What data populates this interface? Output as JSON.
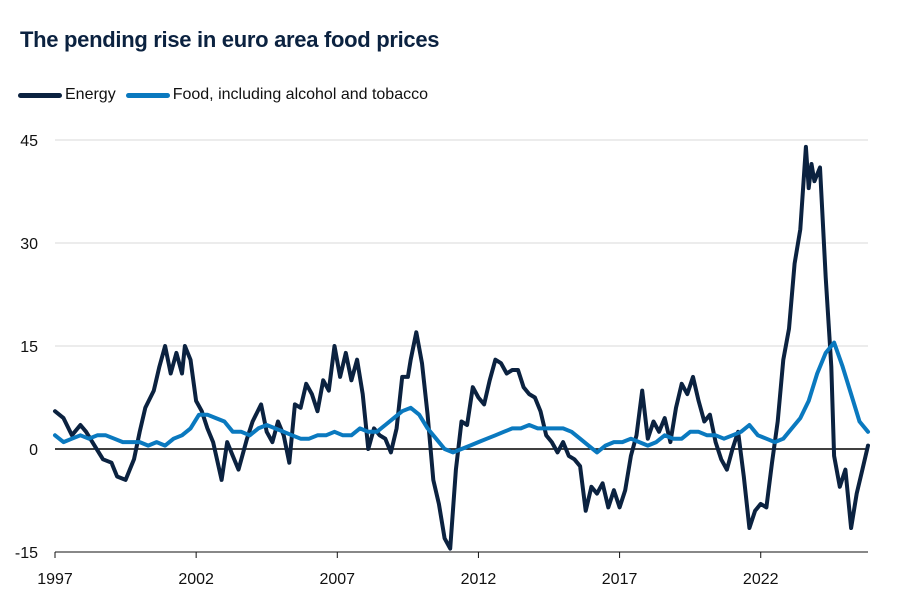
{
  "chart_data": {
    "type": "line",
    "title": "The pending rise in euro area food prices",
    "xlabel": "",
    "ylabel": "",
    "xlim": [
      1997,
      2025.8
    ],
    "ylim": [
      -15,
      45
    ],
    "yticks": [
      -15,
      0,
      15,
      30,
      45
    ],
    "xticks": [
      1997,
      2002,
      2007,
      2012,
      2017,
      2022
    ],
    "grid": "horizontal",
    "legend_position": "top-left",
    "series": [
      {
        "name": "Energy",
        "color": "#0b2240",
        "points": [
          [
            1997.0,
            5.5
          ],
          [
            1997.3,
            4.5
          ],
          [
            1997.6,
            2.0
          ],
          [
            1997.9,
            3.5
          ],
          [
            1998.1,
            2.5
          ],
          [
            1998.4,
            0.5
          ],
          [
            1998.7,
            -1.5
          ],
          [
            1999.0,
            -2.0
          ],
          [
            1999.2,
            -4.0
          ],
          [
            1999.5,
            -4.5
          ],
          [
            1999.8,
            -1.5
          ],
          [
            2000.0,
            2.5
          ],
          [
            2000.2,
            6.0
          ],
          [
            2000.5,
            8.5
          ],
          [
            2000.7,
            12.0
          ],
          [
            2000.9,
            15.0
          ],
          [
            2001.1,
            11.0
          ],
          [
            2001.3,
            14.0
          ],
          [
            2001.5,
            11.0
          ],
          [
            2001.6,
            15.0
          ],
          [
            2001.8,
            13.0
          ],
          [
            2002.0,
            7.0
          ],
          [
            2002.2,
            5.5
          ],
          [
            2002.4,
            3.0
          ],
          [
            2002.6,
            1.0
          ],
          [
            2002.9,
            -4.5
          ],
          [
            2003.1,
            1.0
          ],
          [
            2003.3,
            -1.0
          ],
          [
            2003.5,
            -3.0
          ],
          [
            2003.8,
            1.5
          ],
          [
            2004.0,
            4.0
          ],
          [
            2004.3,
            6.5
          ],
          [
            2004.5,
            2.5
          ],
          [
            2004.7,
            1.0
          ],
          [
            2004.9,
            4.0
          ],
          [
            2005.1,
            2.0
          ],
          [
            2005.3,
            -2.0
          ],
          [
            2005.5,
            6.5
          ],
          [
            2005.7,
            6.0
          ],
          [
            2005.9,
            9.5
          ],
          [
            2006.1,
            8.0
          ],
          [
            2006.3,
            5.5
          ],
          [
            2006.5,
            10.0
          ],
          [
            2006.7,
            8.5
          ],
          [
            2006.9,
            15.0
          ],
          [
            2007.1,
            10.5
          ],
          [
            2007.3,
            14.0
          ],
          [
            2007.5,
            10.0
          ],
          [
            2007.7,
            13.0
          ],
          [
            2007.9,
            8.0
          ],
          [
            2008.1,
            0.0
          ],
          [
            2008.3,
            3.0
          ],
          [
            2008.5,
            2.0
          ],
          [
            2008.7,
            1.5
          ],
          [
            2008.9,
            -0.5
          ],
          [
            2009.1,
            3.0
          ],
          [
            2009.3,
            10.5
          ],
          [
            2009.5,
            10.5
          ],
          [
            2009.6,
            13.0
          ],
          [
            2009.8,
            17.0
          ],
          [
            2010.0,
            12.5
          ],
          [
            2010.2,
            5.0
          ],
          [
            2010.4,
            -4.5
          ],
          [
            2010.6,
            -8.0
          ],
          [
            2010.8,
            -13.0
          ],
          [
            2011.0,
            -14.5
          ],
          [
            2011.2,
            -3.0
          ],
          [
            2011.4,
            4.0
          ],
          [
            2011.6,
            3.5
          ],
          [
            2011.8,
            9.0
          ],
          [
            2012.0,
            7.5
          ],
          [
            2012.2,
            6.5
          ],
          [
            2012.4,
            10.0
          ],
          [
            2012.6,
            13.0
          ],
          [
            2012.8,
            12.5
          ],
          [
            2013.0,
            11.0
          ],
          [
            2013.2,
            11.5
          ],
          [
            2013.4,
            11.5
          ],
          [
            2013.6,
            9.0
          ],
          [
            2013.8,
            8.0
          ],
          [
            2014.0,
            7.5
          ],
          [
            2014.2,
            5.5
          ],
          [
            2014.4,
            2.0
          ],
          [
            2014.6,
            1.0
          ],
          [
            2014.8,
            -0.5
          ],
          [
            2015.0,
            1.0
          ],
          [
            2015.2,
            -1.0
          ],
          [
            2015.4,
            -1.5
          ],
          [
            2015.6,
            -2.5
          ],
          [
            2015.8,
            -9.0
          ],
          [
            2016.0,
            -5.5
          ],
          [
            2016.2,
            -6.5
          ],
          [
            2016.4,
            -5.0
          ],
          [
            2016.6,
            -8.5
          ],
          [
            2016.8,
            -6.0
          ],
          [
            2017.0,
            -8.5
          ],
          [
            2017.2,
            -6.0
          ],
          [
            2017.4,
            -1.0
          ],
          [
            2017.6,
            2.0
          ],
          [
            2017.8,
            8.5
          ],
          [
            2018.0,
            1.5
          ],
          [
            2018.2,
            4.0
          ],
          [
            2018.4,
            2.5
          ],
          [
            2018.6,
            4.5
          ],
          [
            2018.8,
            1.0
          ],
          [
            2019.0,
            6.0
          ],
          [
            2019.2,
            9.5
          ],
          [
            2019.4,
            8.0
          ],
          [
            2019.6,
            10.5
          ],
          [
            2019.8,
            7.0
          ],
          [
            2020.0,
            4.0
          ],
          [
            2020.2,
            5.0
          ],
          [
            2020.4,
            1.0
          ],
          [
            2020.6,
            -1.5
          ],
          [
            2020.8,
            -3.0
          ],
          [
            2021.0,
            0.0
          ],
          [
            2021.2,
            2.5
          ],
          [
            2021.4,
            -4.0
          ],
          [
            2021.6,
            -11.5
          ],
          [
            2021.8,
            -9.0
          ],
          [
            2022.0,
            -8.0
          ],
          [
            2022.2,
            -8.5
          ],
          [
            2022.4,
            -2.0
          ],
          [
            2022.6,
            4.0
          ],
          [
            2022.8,
            13.0
          ],
          [
            2023.0,
            17.5
          ],
          [
            2023.2,
            27.0
          ],
          [
            2023.4,
            32.0
          ],
          [
            2023.6,
            44.0
          ],
          [
            2023.7,
            38.0
          ],
          [
            2023.8,
            41.5
          ],
          [
            2023.9,
            39.0
          ],
          [
            2024.1,
            41.0
          ],
          [
            2024.3,
            25.0
          ],
          [
            2024.5,
            12.0
          ],
          [
            2024.6,
            -1.0
          ],
          [
            2024.8,
            -5.5
          ],
          [
            2025.0,
            -3.0
          ],
          [
            2025.2,
            -11.5
          ],
          [
            2025.4,
            -6.5
          ],
          [
            2025.6,
            -3.0
          ],
          [
            2025.8,
            0.5
          ]
        ]
      },
      {
        "name": "Food, including alcohol and tobacco",
        "color": "#0a79bf",
        "points": [
          [
            1997.0,
            2.0
          ],
          [
            1997.3,
            1.0
          ],
          [
            1997.6,
            1.5
          ],
          [
            1997.9,
            2.0
          ],
          [
            1998.2,
            1.5
          ],
          [
            1998.5,
            2.0
          ],
          [
            1998.8,
            2.0
          ],
          [
            1999.1,
            1.5
          ],
          [
            1999.4,
            1.0
          ],
          [
            1999.7,
            1.0
          ],
          [
            2000.0,
            1.0
          ],
          [
            2000.3,
            0.5
          ],
          [
            2000.6,
            1.0
          ],
          [
            2000.9,
            0.5
          ],
          [
            2001.2,
            1.5
          ],
          [
            2001.5,
            2.0
          ],
          [
            2001.8,
            3.0
          ],
          [
            2002.1,
            5.0
          ],
          [
            2002.4,
            5.0
          ],
          [
            2002.7,
            4.5
          ],
          [
            2003.0,
            4.0
          ],
          [
            2003.3,
            2.5
          ],
          [
            2003.6,
            2.5
          ],
          [
            2003.9,
            2.0
          ],
          [
            2004.2,
            3.0
          ],
          [
            2004.5,
            3.5
          ],
          [
            2004.8,
            3.0
          ],
          [
            2005.1,
            2.5
          ],
          [
            2005.4,
            2.0
          ],
          [
            2005.7,
            1.5
          ],
          [
            2006.0,
            1.5
          ],
          [
            2006.3,
            2.0
          ],
          [
            2006.6,
            2.0
          ],
          [
            2006.9,
            2.5
          ],
          [
            2007.2,
            2.0
          ],
          [
            2007.5,
            2.0
          ],
          [
            2007.8,
            3.0
          ],
          [
            2008.1,
            2.5
          ],
          [
            2008.4,
            2.5
          ],
          [
            2008.7,
            3.5
          ],
          [
            2009.0,
            4.5
          ],
          [
            2009.3,
            5.5
          ],
          [
            2009.6,
            6.0
          ],
          [
            2009.9,
            5.0
          ],
          [
            2010.2,
            3.0
          ],
          [
            2010.5,
            1.5
          ],
          [
            2010.8,
            0.0
          ],
          [
            2011.1,
            -0.5
          ],
          [
            2011.4,
            0.0
          ],
          [
            2011.7,
            0.5
          ],
          [
            2012.0,
            1.0
          ],
          [
            2012.3,
            1.5
          ],
          [
            2012.6,
            2.0
          ],
          [
            2012.9,
            2.5
          ],
          [
            2013.2,
            3.0
          ],
          [
            2013.5,
            3.0
          ],
          [
            2013.8,
            3.5
          ],
          [
            2014.1,
            3.0
          ],
          [
            2014.4,
            3.0
          ],
          [
            2014.7,
            3.0
          ],
          [
            2015.0,
            3.0
          ],
          [
            2015.3,
            2.5
          ],
          [
            2015.6,
            1.5
          ],
          [
            2015.9,
            0.5
          ],
          [
            2016.2,
            -0.5
          ],
          [
            2016.5,
            0.5
          ],
          [
            2016.8,
            1.0
          ],
          [
            2017.1,
            1.0
          ],
          [
            2017.4,
            1.5
          ],
          [
            2017.7,
            1.0
          ],
          [
            2018.0,
            0.5
          ],
          [
            2018.3,
            1.0
          ],
          [
            2018.6,
            2.0
          ],
          [
            2018.9,
            1.5
          ],
          [
            2019.2,
            1.5
          ],
          [
            2019.5,
            2.5
          ],
          [
            2019.8,
            2.5
          ],
          [
            2020.1,
            2.0
          ],
          [
            2020.4,
            2.0
          ],
          [
            2020.7,
            1.5
          ],
          [
            2021.0,
            2.0
          ],
          [
            2021.3,
            2.5
          ],
          [
            2021.6,
            3.5
          ],
          [
            2021.9,
            2.0
          ],
          [
            2022.2,
            1.5
          ],
          [
            2022.5,
            1.0
          ],
          [
            2022.8,
            1.5
          ],
          [
            2023.1,
            3.0
          ],
          [
            2023.4,
            4.5
          ],
          [
            2023.7,
            7.0
          ],
          [
            2024.0,
            11.0
          ],
          [
            2024.3,
            14.0
          ],
          [
            2024.6,
            15.5
          ],
          [
            2024.9,
            12.0
          ],
          [
            2025.2,
            8.0
          ],
          [
            2025.5,
            4.0
          ],
          [
            2025.8,
            2.5
          ]
        ]
      }
    ]
  }
}
